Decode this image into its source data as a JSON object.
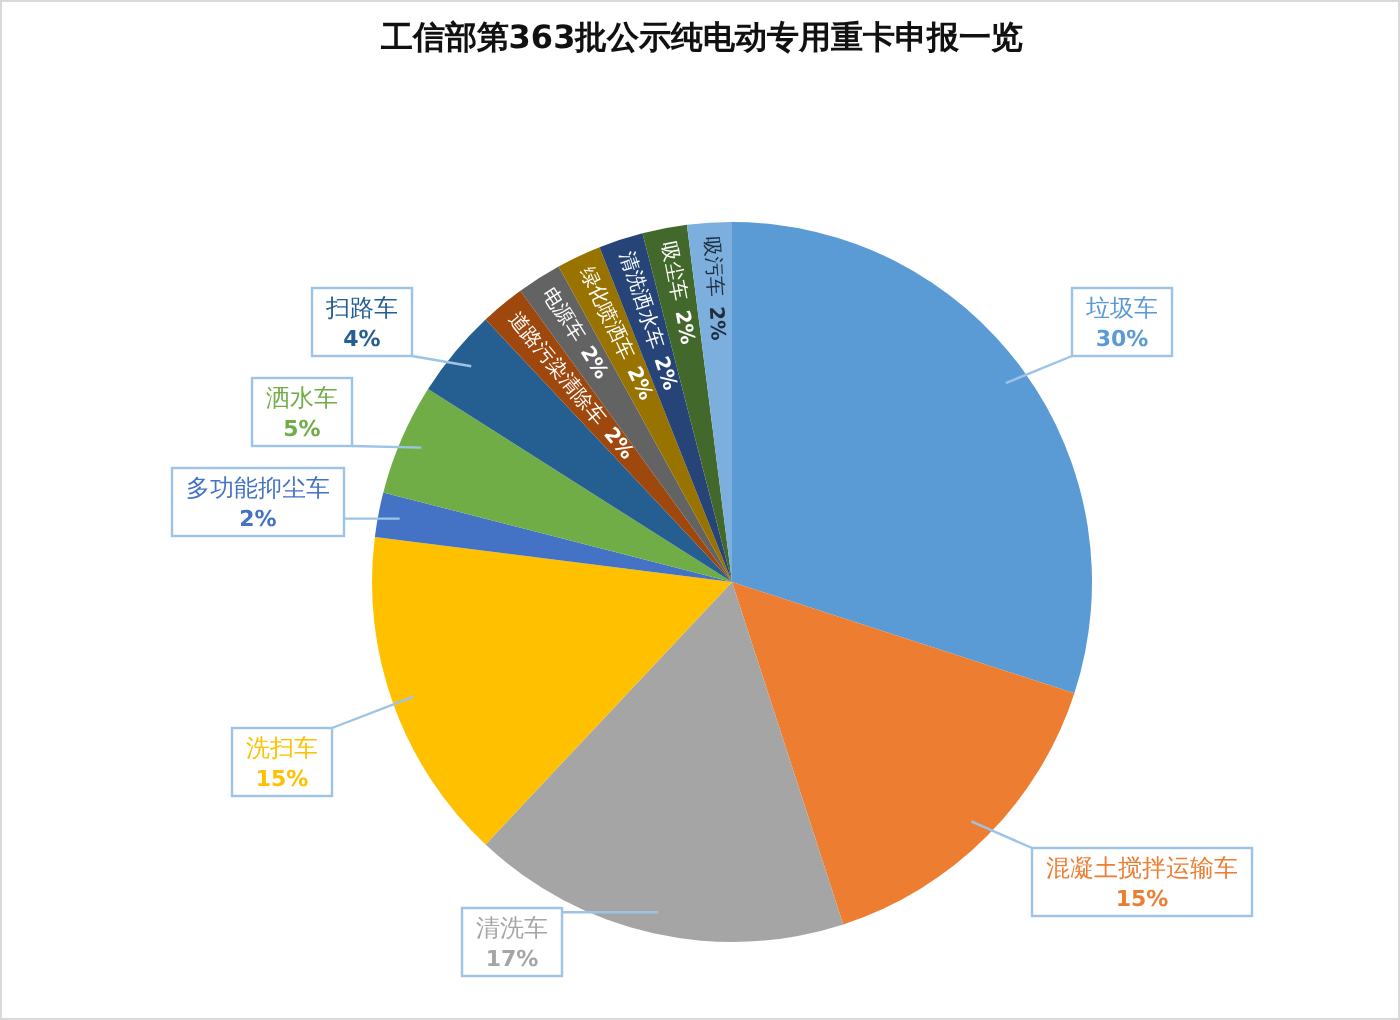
{
  "chart_data": {
    "type": "pie",
    "title": "工信部第363批公示纯电动专用重卡申报一览",
    "categories": [
      "垃圾车",
      "混凝土搅拌运输车",
      "清洗车",
      "洗扫车",
      "多功能抑尘车",
      "洒水车",
      "扫路车",
      "道路污染清除车",
      "电源车",
      "绿化喷洒车",
      "清洗洒水车",
      "吸尘车",
      "吸污车"
    ],
    "values": [
      30,
      15,
      17,
      15,
      2,
      5,
      4,
      2,
      2,
      2,
      2,
      2,
      2
    ],
    "colors": [
      "#5b9bd5",
      "#ed7d31",
      "#a5a5a5",
      "#ffc000",
      "#4472c4",
      "#70ad47",
      "#255e91",
      "#9e480e",
      "#636363",
      "#997300",
      "#264478",
      "#43682b",
      "#7cafdd"
    ],
    "value_labels": [
      "30%",
      "15%",
      "17%",
      "15%",
      "2%",
      "5%",
      "4%",
      "2%",
      "2%",
      "2%",
      "2%",
      "2%",
      "2%"
    ]
  }
}
